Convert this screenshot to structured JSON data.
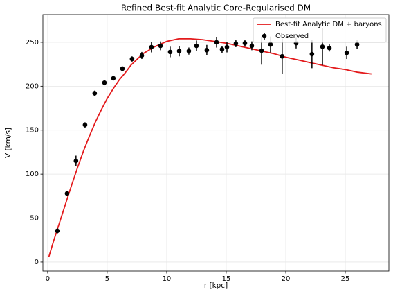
{
  "chart_data": {
    "type": "line",
    "title": "Refined Best-fit Analytic Core-Regularised DM",
    "xlabel": "r [kpc]",
    "ylabel": "V [km/s]",
    "xlim": [
      -0.4,
      28.66
    ],
    "ylim": [
      -10.3,
      281.5
    ],
    "xticks": [
      0,
      5,
      10,
      15,
      20,
      25
    ],
    "yticks": [
      0,
      50,
      100,
      150,
      200,
      250
    ],
    "grid": true,
    "legend": "upper right",
    "model": {
      "name": "Best-fit Analytic DM + baryons",
      "color": "#e31a1c",
      "x": [
        0.1,
        0.5,
        1,
        1.5,
        2,
        2.5,
        3,
        3.5,
        4,
        4.5,
        5,
        5.5,
        6,
        6.5,
        7,
        8,
        9,
        10,
        11,
        12,
        13,
        14,
        15,
        16,
        17,
        18,
        19,
        20,
        21,
        22,
        23,
        24,
        25,
        26,
        27.2
      ],
      "values": [
        6,
        24,
        45,
        66,
        87,
        107,
        126,
        143,
        159,
        173,
        186,
        197,
        207,
        215,
        224,
        237,
        245,
        251,
        254,
        254,
        253,
        251,
        249,
        246,
        243,
        240,
        237,
        233,
        230,
        227,
        224,
        221,
        219,
        216,
        214
      ]
    },
    "observed": {
      "name": "Observed",
      "color": "#000000",
      "x": [
        0.81,
        1.63,
        2.38,
        3.14,
        3.95,
        4.77,
        5.52,
        6.28,
        7.09,
        7.91,
        8.72,
        9.48,
        10.29,
        11.05,
        11.86,
        12.5,
        13.37,
        14.19,
        14.65,
        15.06,
        15.81,
        16.57,
        17.15,
        17.97,
        18.72,
        19.7,
        20.87,
        22.2,
        23.08,
        23.66,
        25.12,
        25.99
      ],
      "values": [
        35.5,
        78,
        115,
        156,
        192,
        204,
        209,
        220,
        231,
        235,
        244.5,
        246,
        239,
        240,
        240,
        246,
        241,
        250,
        242,
        244.5,
        248.5,
        249,
        246,
        240.5,
        247.5,
        234,
        249,
        236.5,
        245,
        243.5,
        238,
        247.5
      ],
      "errors": [
        3,
        3,
        6,
        3,
        3,
        3,
        2,
        2,
        3,
        4,
        6,
        5,
        6,
        6,
        4,
        6,
        6,
        6,
        4,
        6,
        4,
        4,
        5,
        16,
        9,
        20,
        6,
        16,
        21,
        4,
        7,
        5
      ]
    }
  }
}
